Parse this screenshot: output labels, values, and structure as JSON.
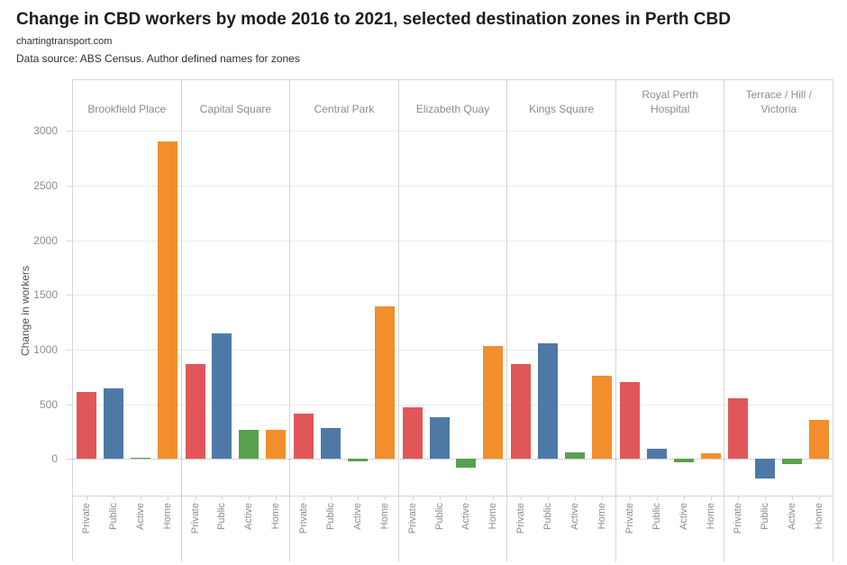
{
  "title": "Change in CBD workers by mode 2016 to 2021, selected destination zones in Perth CBD",
  "subtitle": "chartingtransport.com",
  "source_note": "Data source: ABS Census. Author defined names for zones",
  "chart_data": {
    "type": "bar",
    "facet_by": "destination zone",
    "title": "Change in CBD workers by mode 2016 to 2021, selected destination zones in Perth CBD",
    "categories": [
      "Private",
      "Public",
      "Active",
      "Home"
    ],
    "panels": [
      {
        "zone": "Brookfield Place",
        "values": [
          610,
          650,
          10,
          2900
        ]
      },
      {
        "zone": "Capital Square",
        "values": [
          870,
          1150,
          265,
          270
        ]
      },
      {
        "zone": "Central Park",
        "values": [
          415,
          280,
          -25,
          1395
        ]
      },
      {
        "zone": "Elizabeth Quay",
        "values": [
          470,
          385,
          -80,
          1030
        ]
      },
      {
        "zone": "Kings Square",
        "values": [
          865,
          1060,
          65,
          765
        ]
      },
      {
        "zone": "Royal Perth Hospital",
        "values": [
          700,
          95,
          -30,
          50
        ]
      },
      {
        "zone": "Terrace / Hill / Victoria",
        "values": [
          555,
          -180,
          -45,
          355
        ]
      }
    ],
    "xlabel": "",
    "ylabel": "Change in workers",
    "yticks": [
      0,
      500,
      1000,
      1500,
      2000,
      2500,
      3000
    ],
    "ylim": [
      -342,
      3075
    ],
    "grid": true,
    "legend": false,
    "colors": {
      "Private": "#E15759",
      "Public": "#4E79A7",
      "Active": "#59A14F",
      "Home": "#F28E2B"
    },
    "gridline_color": "#ebebeb",
    "divider_color": "#d6d6d6",
    "axis_text_color": "#8c8c8c"
  }
}
